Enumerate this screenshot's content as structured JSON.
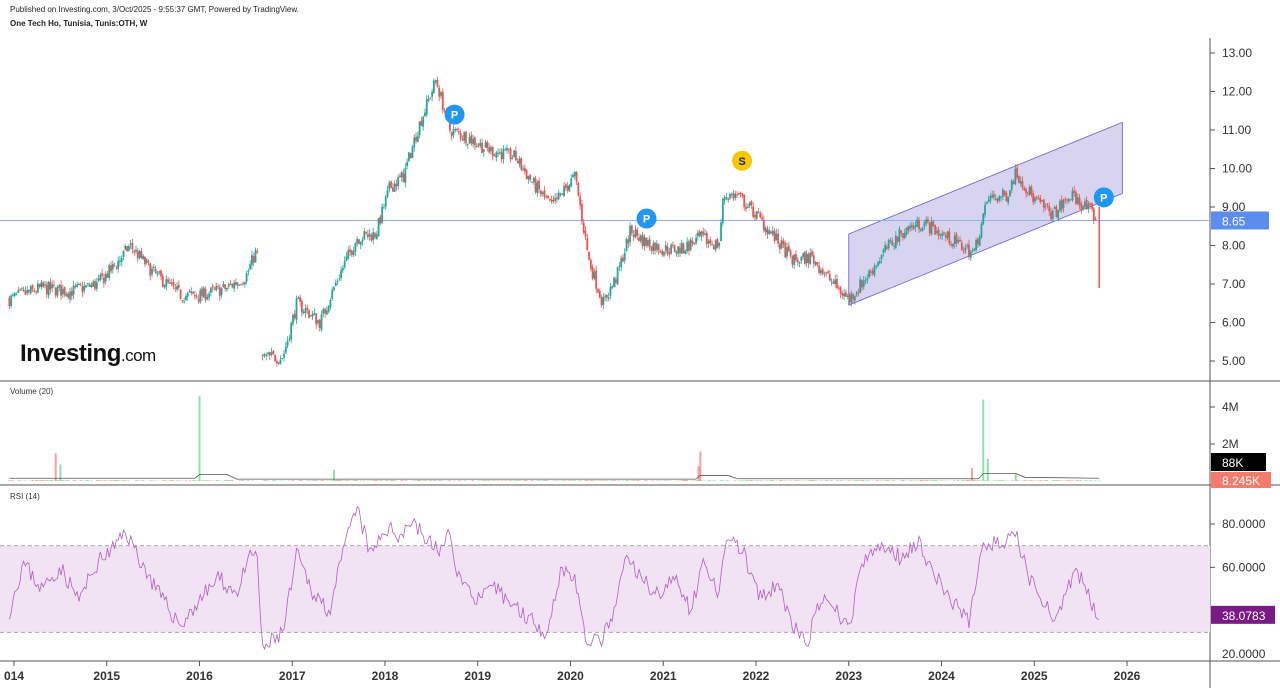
{
  "header": {
    "published": "Published on Investing.com, 3/Oct/2025 - 9:55:37 GMT, Powered by TradingView.",
    "title": "One Tech Ho, Tunisia, Tunis:OTH, W"
  },
  "logo": {
    "main": "Investing",
    "suffix": ".com"
  },
  "colors": {
    "up": "#26a69a",
    "up_vol": "#8fe0b0",
    "down": "#ef5350",
    "down_vol": "#f5a0a0",
    "hline": "#90b0f0",
    "channel_fill": "#c8c0e8",
    "channel_stroke": "#6a5acd",
    "rsi": "#b060c0",
    "rsi_band": "#f1e3f3",
    "rsi_label": "#7b1a86",
    "marker_p": "#2196f3",
    "marker_s": "#f5c800"
  },
  "chart_data": [
    {
      "type": "candlestick",
      "pane": "price",
      "yaxis_ticks": [
        "13.00",
        "12.00",
        "11.00",
        "10.00",
        "9.00",
        "8.00",
        "7.00",
        "6.00",
        "5.00"
      ],
      "ylim": [
        4.7,
        13.4
      ],
      "last_price_label": "8.65",
      "last_price": 8.65,
      "x_ticks": [
        "014",
        "2015",
        "2016",
        "2017",
        "2018",
        "2019",
        "2020",
        "2021",
        "2022",
        "2023",
        "2024",
        "2025",
        "2026"
      ],
      "close_path": [
        [
          2013.95,
          6.6
        ],
        [
          2014.3,
          6.9
        ],
        [
          2014.6,
          6.8
        ],
        [
          2014.9,
          7.0
        ],
        [
          2015.1,
          7.5
        ],
        [
          2015.25,
          8.0
        ],
        [
          2015.5,
          7.3
        ],
        [
          2015.8,
          6.7
        ],
        [
          2016.0,
          6.7
        ],
        [
          2016.3,
          6.9
        ],
        [
          2016.5,
          7.2
        ],
        [
          2016.62,
          7.9
        ],
        [
          2016.67,
          5.1
        ],
        [
          2016.9,
          5.1
        ],
        [
          2017.05,
          6.5
        ],
        [
          2017.3,
          6.0
        ],
        [
          2017.5,
          7.2
        ],
        [
          2017.7,
          8.2
        ],
        [
          2017.9,
          8.3
        ],
        [
          2018.05,
          9.5
        ],
        [
          2018.2,
          9.8
        ],
        [
          2018.35,
          11.0
        ],
        [
          2018.55,
          12.3
        ],
        [
          2018.7,
          11.0
        ],
        [
          2018.9,
          10.8
        ],
        [
          2019.1,
          10.5
        ],
        [
          2019.4,
          10.3
        ],
        [
          2019.6,
          9.6
        ],
        [
          2019.8,
          9.0
        ],
        [
          2019.95,
          9.5
        ],
        [
          2020.05,
          9.8
        ],
        [
          2020.2,
          7.6
        ],
        [
          2020.35,
          6.5
        ],
        [
          2020.5,
          7.2
        ],
        [
          2020.65,
          8.4
        ],
        [
          2020.8,
          8.1
        ],
        [
          2021.0,
          7.9
        ],
        [
          2021.2,
          7.9
        ],
        [
          2021.4,
          8.2
        ],
        [
          2021.6,
          8.0
        ],
        [
          2021.65,
          9.3
        ],
        [
          2021.8,
          9.3
        ],
        [
          2022.0,
          8.8
        ],
        [
          2022.2,
          8.2
        ],
        [
          2022.4,
          7.6
        ],
        [
          2022.6,
          7.7
        ],
        [
          2022.8,
          7.1
        ],
        [
          2023.0,
          6.6
        ],
        [
          2023.2,
          7.2
        ],
        [
          2023.4,
          7.9
        ],
        [
          2023.6,
          8.4
        ],
        [
          2023.8,
          8.6
        ],
        [
          2024.0,
          8.3
        ],
        [
          2024.2,
          8.0
        ],
        [
          2024.35,
          7.8
        ],
        [
          2024.5,
          9.2
        ],
        [
          2024.7,
          9.3
        ],
        [
          2024.8,
          9.9
        ],
        [
          2025.0,
          9.2
        ],
        [
          2025.2,
          8.8
        ],
        [
          2025.4,
          9.3
        ],
        [
          2025.6,
          8.9
        ],
        [
          2025.68,
          8.65
        ]
      ],
      "last_candle": {
        "x": 2025.7,
        "open": 8.9,
        "high": 9.0,
        "low": 6.9,
        "close": 8.65
      },
      "channel": {
        "lower": [
          [
            2023.0,
            6.45
          ],
          [
            2025.95,
            9.35
          ]
        ],
        "upper": [
          [
            2023.0,
            8.3
          ],
          [
            2025.95,
            11.2
          ]
        ]
      },
      "markers": [
        {
          "label": "P",
          "x": 2018.75,
          "y": 11.4,
          "kind": "p"
        },
        {
          "label": "P",
          "x": 2020.82,
          "y": 8.7,
          "kind": "p"
        },
        {
          "label": "S",
          "x": 2021.85,
          "y": 10.2,
          "kind": "s"
        },
        {
          "label": "P",
          "x": 2025.75,
          "y": 9.25,
          "kind": "p"
        }
      ]
    },
    {
      "type": "bar",
      "pane": "volume",
      "title": "Volume (20)",
      "yaxis_ticks": [
        "4M",
        "2M"
      ],
      "ylim": [
        0,
        4.8
      ],
      "unit": "M",
      "spikes": [
        [
          2014.45,
          1.5,
          "down"
        ],
        [
          2014.5,
          0.9,
          "up"
        ],
        [
          2016.0,
          4.6,
          "up"
        ],
        [
          2017.45,
          0.6,
          "up"
        ],
        [
          2021.4,
          1.6,
          "down"
        ],
        [
          2021.38,
          0.8,
          "down"
        ],
        [
          2024.33,
          0.7,
          "down"
        ],
        [
          2024.45,
          4.4,
          "up"
        ],
        [
          2024.5,
          1.2,
          "up"
        ],
        [
          2024.8,
          0.4,
          "up"
        ]
      ],
      "ma_label": "88K",
      "last_label": "8.245K"
    },
    {
      "type": "line",
      "pane": "rsi",
      "title": "RSI (14)",
      "yaxis_ticks": [
        "80.0000",
        "60.0000"
      ],
      "ylim": [
        16,
        92
      ],
      "band": [
        30,
        70
      ],
      "last_label": "38.0783",
      "path": [
        [
          2013.95,
          40
        ],
        [
          2014.1,
          62
        ],
        [
          2014.3,
          50
        ],
        [
          2014.5,
          60
        ],
        [
          2014.7,
          45
        ],
        [
          2014.9,
          62
        ],
        [
          2015.1,
          70
        ],
        [
          2015.2,
          77
        ],
        [
          2015.4,
          60
        ],
        [
          2015.6,
          45
        ],
        [
          2015.8,
          33
        ],
        [
          2016.0,
          45
        ],
        [
          2016.2,
          55
        ],
        [
          2016.4,
          48
        ],
        [
          2016.55,
          65
        ],
        [
          2016.62,
          68
        ],
        [
          2016.67,
          22
        ],
        [
          2016.9,
          30
        ],
        [
          2017.05,
          66
        ],
        [
          2017.2,
          50
        ],
        [
          2017.4,
          40
        ],
        [
          2017.6,
          75
        ],
        [
          2017.7,
          87
        ],
        [
          2017.85,
          65
        ],
        [
          2018.0,
          78
        ],
        [
          2018.15,
          75
        ],
        [
          2018.3,
          82
        ],
        [
          2018.45,
          72
        ],
        [
          2018.6,
          68
        ],
        [
          2018.7,
          75
        ],
        [
          2018.8,
          55
        ],
        [
          2019.0,
          45
        ],
        [
          2019.2,
          50
        ],
        [
          2019.4,
          42
        ],
        [
          2019.6,
          35
        ],
        [
          2019.75,
          30
        ],
        [
          2019.9,
          60
        ],
        [
          2020.05,
          55
        ],
        [
          2020.15,
          28
        ],
        [
          2020.3,
          25
        ],
        [
          2020.45,
          35
        ],
        [
          2020.6,
          65
        ],
        [
          2020.75,
          55
        ],
        [
          2020.95,
          48
        ],
        [
          2021.15,
          55
        ],
        [
          2021.3,
          40
        ],
        [
          2021.45,
          65
        ],
        [
          2021.6,
          44
        ],
        [
          2021.68,
          75
        ],
        [
          2021.85,
          68
        ],
        [
          2022.05,
          45
        ],
        [
          2022.25,
          52
        ],
        [
          2022.4,
          32
        ],
        [
          2022.55,
          25
        ],
        [
          2022.7,
          45
        ],
        [
          2022.9,
          38
        ],
        [
          2023.0,
          32
        ],
        [
          2023.15,
          62
        ],
        [
          2023.35,
          70
        ],
        [
          2023.55,
          65
        ],
        [
          2023.75,
          72
        ],
        [
          2023.95,
          55
        ],
        [
          2024.1,
          45
        ],
        [
          2024.3,
          35
        ],
        [
          2024.45,
          72
        ],
        [
          2024.65,
          70
        ],
        [
          2024.8,
          75
        ],
        [
          2024.95,
          55
        ],
        [
          2025.1,
          45
        ],
        [
          2025.25,
          35
        ],
        [
          2025.45,
          60
        ],
        [
          2025.6,
          45
        ],
        [
          2025.7,
          38.08
        ]
      ]
    }
  ]
}
